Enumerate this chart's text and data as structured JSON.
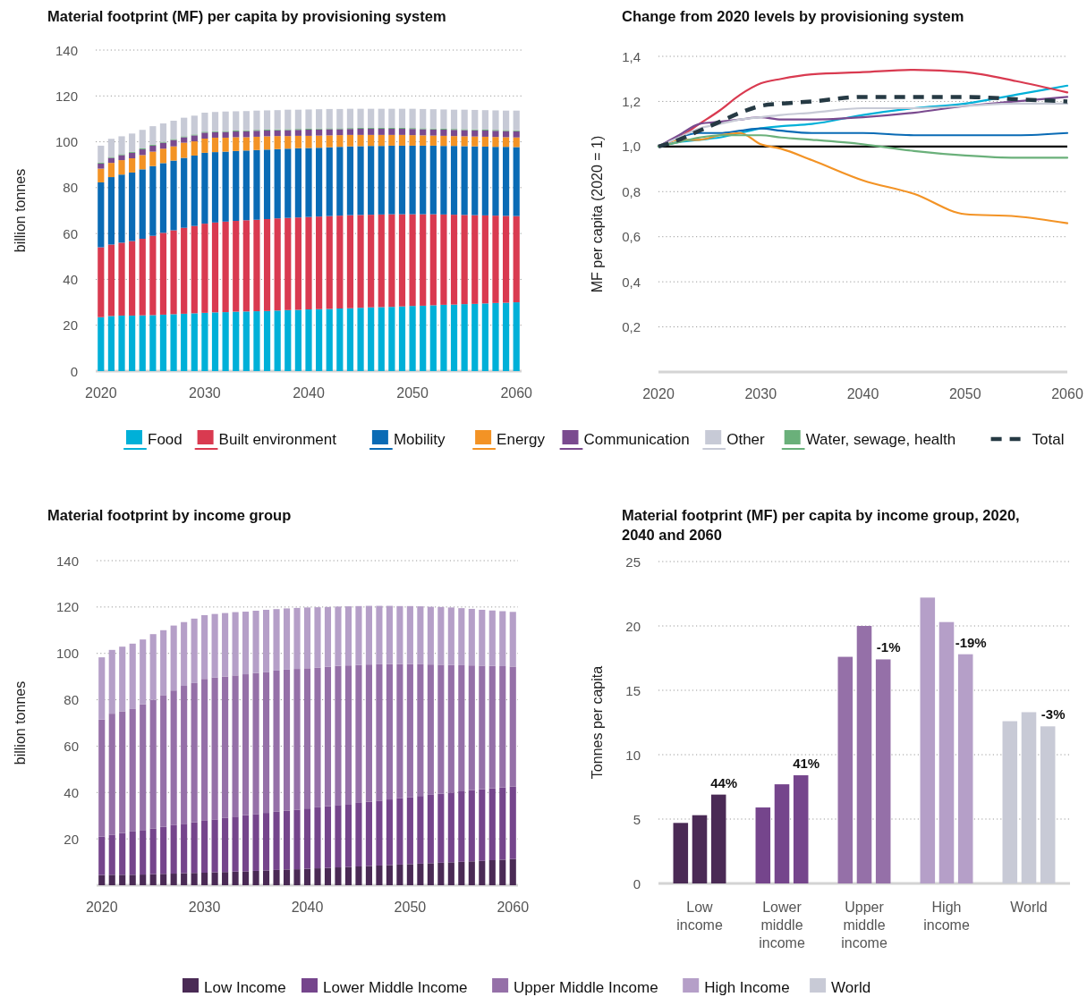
{
  "chart_data": [
    {
      "type": "bar",
      "title": "Material footprint (MF) per capita by provisioning system",
      "ylabel": "billion tonnes",
      "stacked": true,
      "grid": "y",
      "legend": "bottom",
      "x": [
        2020,
        2021,
        2022,
        2023,
        2024,
        2025,
        2026,
        2027,
        2028,
        2029,
        2030,
        2031,
        2032,
        2033,
        2034,
        2035,
        2036,
        2037,
        2038,
        2039,
        2040,
        2041,
        2042,
        2043,
        2044,
        2045,
        2046,
        2047,
        2048,
        2049,
        2050,
        2051,
        2052,
        2053,
        2054,
        2055,
        2056,
        2057,
        2058,
        2059,
        2060
      ],
      "xlim": [
        2019.5,
        2060.5
      ],
      "xticks": [
        2020,
        2030,
        2040,
        2050,
        2060
      ],
      "ylim": [
        0,
        140
      ],
      "yticks": [
        0,
        20,
        40,
        60,
        80,
        100,
        120,
        140
      ],
      "series": [
        {
          "name": "Food",
          "color": "#00b0d8",
          "values": [
            23.5,
            24,
            24.2,
            24.2,
            24.3,
            24.4,
            24.6,
            24.8,
            25,
            25.2,
            25.4,
            25.6,
            25.7,
            25.9,
            26,
            26.1,
            26.2,
            26.4,
            26.6,
            26.7,
            26.9,
            27,
            27.1,
            27.3,
            27.4,
            27.6,
            27.8,
            27.9,
            28,
            28.2,
            28.4,
            28.5,
            28.7,
            28.9,
            29,
            29.2,
            29.3,
            29.5,
            29.7,
            29.8,
            30
          ]
        },
        {
          "name": "Built environment",
          "color": "#d93a50",
          "values": [
            30.5,
            31.2,
            31.8,
            32.5,
            33.4,
            34.6,
            35.7,
            36.6,
            37.5,
            38.1,
            38.9,
            39.2,
            39.5,
            39.6,
            39.8,
            39.9,
            40.1,
            40.2,
            40.2,
            40.3,
            40.3,
            40.4,
            40.5,
            40.5,
            40.6,
            40.5,
            40.4,
            40.4,
            40.4,
            40.2,
            40,
            39.9,
            39.7,
            39.4,
            39.2,
            38.9,
            38.7,
            38.4,
            38.1,
            37.9,
            37.6
          ]
        },
        {
          "name": "Mobility",
          "color": "#0a6bb5",
          "values": [
            28.3,
            29.4,
            29.7,
            29.9,
            30.3,
            30.4,
            30.4,
            30.4,
            30.5,
            30.7,
            30.9,
            30.7,
            30.5,
            30.5,
            30.4,
            30.4,
            30.3,
            30.2,
            30.2,
            30.2,
            30.1,
            30,
            30,
            30,
            30,
            30,
            30,
            29.9,
            29.9,
            29.9,
            29.9,
            29.9,
            29.9,
            29.9,
            30,
            30,
            30,
            30,
            30,
            30.1,
            30.1
          ]
        },
        {
          "name": "Energy",
          "color": "#f39325",
          "values": [
            6,
            6.2,
            6.3,
            6.2,
            6.2,
            6.3,
            6.3,
            6.2,
            6.6,
            6.2,
            6.2,
            6.3,
            6.1,
            6,
            5.8,
            5.8,
            5.8,
            5.7,
            5.5,
            5.4,
            5.3,
            5.3,
            5.2,
            5.1,
            5,
            4.9,
            4.8,
            4.8,
            4.7,
            4.7,
            4.6,
            4.5,
            4.4,
            4.4,
            4.3,
            4.3,
            4.3,
            4.3,
            4.3,
            4.2,
            4.2
          ]
        },
        {
          "name": "Communication",
          "color": "#7a4a8f",
          "values": [
            2.2,
            2.2,
            2.2,
            2.4,
            2.5,
            2.6,
            2.6,
            2.8,
            2.4,
            2.6,
            2.6,
            2.4,
            2.5,
            2.5,
            2.6,
            2.6,
            2.5,
            2.5,
            2.6,
            2.6,
            2.7,
            2.7,
            2.7,
            2.6,
            2.6,
            2.7,
            2.7,
            2.7,
            2.7,
            2.7,
            2.7,
            2.7,
            2.7,
            2.7,
            2.7,
            2.7,
            2.7,
            2.7,
            2.7,
            2.7,
            2.7
          ]
        },
        {
          "name": "Water, sewage, health",
          "color": "#6ab07a",
          "values": [
            0.4,
            0.4,
            0.4,
            0.4,
            0.4,
            0.4,
            0.4,
            0.4,
            0.4,
            0.4,
            0.4,
            0.4,
            0.4,
            0.4,
            0.4,
            0.4,
            0.4,
            0.4,
            0.4,
            0.4,
            0.4,
            0.4,
            0.4,
            0.4,
            0.4,
            0.4,
            0.4,
            0.4,
            0.4,
            0.4,
            0.4,
            0.4,
            0.4,
            0.4,
            0.4,
            0.4,
            0.4,
            0.4,
            0.4,
            0.4,
            0.4
          ]
        },
        {
          "name": "Other",
          "color": "#c7cad6",
          "values": [
            7.4,
            7.9,
            7.8,
            8,
            8.1,
            8.1,
            8,
            8,
            8.1,
            8.2,
            8.3,
            8.4,
            8.5,
            8.4,
            8.4,
            8.4,
            8.4,
            8.4,
            8.5,
            8.4,
            8.4,
            8.4,
            8.4,
            8.4,
            8.4,
            8.3,
            8.3,
            8.3,
            8.3,
            8.3,
            8.4,
            8.4,
            8.4,
            8.4,
            8.4,
            8.5,
            8.5,
            8.5,
            8.5,
            8.5,
            8.6
          ]
        }
      ]
    },
    {
      "type": "line",
      "title": "Change from 2020 levels by provisioning system",
      "ylabel": "MF per capita (2020 = 1)",
      "grid": "y",
      "legend": "bottom",
      "x": [
        2020,
        2022,
        2024,
        2026,
        2028,
        2030,
        2032,
        2035,
        2040,
        2045,
        2050,
        2055,
        2060
      ],
      "xlim": [
        2020,
        2060
      ],
      "xticks": [
        2020,
        2030,
        2040,
        2050,
        2060
      ],
      "ylim": [
        0,
        1.4
      ],
      "yticks": [
        {
          "value": 0.2,
          "label": "0,2"
        },
        {
          "value": 0.4,
          "label": "0,4"
        },
        {
          "value": 0.6,
          "label": "0,6"
        },
        {
          "value": 0.8,
          "label": "0,8"
        },
        {
          "value": 1,
          "label": "1,0"
        },
        {
          "value": 1.2,
          "label": "1,2"
        },
        {
          "value": 1.4,
          "label": "1,4"
        }
      ],
      "ref_lines": [
        {
          "axis": "y",
          "value": 1,
          "color": "#000000"
        }
      ],
      "series": [
        {
          "name": "Food",
          "color": "#00b0d8",
          "values": [
            1,
            1.02,
            1.03,
            1.04,
            1.06,
            1.08,
            1.09,
            1.1,
            1.14,
            1.17,
            1.19,
            1.23,
            1.27
          ]
        },
        {
          "name": "Built environment",
          "color": "#d93a50",
          "values": [
            1,
            1.04,
            1.1,
            1.16,
            1.23,
            1.28,
            1.3,
            1.32,
            1.33,
            1.34,
            1.33,
            1.29,
            1.24
          ]
        },
        {
          "name": "Mobility",
          "color": "#0a6bb5",
          "values": [
            1,
            1.04,
            1.06,
            1.06,
            1.07,
            1.08,
            1.07,
            1.06,
            1.06,
            1.05,
            1.05,
            1.05,
            1.06
          ]
        },
        {
          "name": "Energy",
          "color": "#f39325",
          "values": [
            1,
            1.03,
            1.03,
            1.05,
            1.06,
            1.01,
            0.99,
            0.94,
            0.85,
            0.79,
            0.7,
            0.69,
            0.66
          ]
        },
        {
          "name": "Communication",
          "color": "#7a4a8f",
          "values": [
            1,
            1.05,
            1.1,
            1.11,
            1.12,
            1.13,
            1.12,
            1.12,
            1.13,
            1.15,
            1.18,
            1.2,
            1.22
          ]
        },
        {
          "name": "Other",
          "color": "#c7cad6",
          "values": [
            1,
            1.04,
            1.08,
            1.1,
            1.12,
            1.13,
            1.14,
            1.15,
            1.17,
            1.17,
            1.18,
            1.19,
            1.19
          ]
        },
        {
          "name": "Water, sewage, health",
          "color": "#6ab07a",
          "values": [
            1,
            1.02,
            1.04,
            1.05,
            1.05,
            1.05,
            1.04,
            1.03,
            1.01,
            0.98,
            0.96,
            0.95,
            0.95
          ]
        },
        {
          "name": "Total",
          "color": "#263a44",
          "line_style": "dashed",
          "values": [
            1,
            1.03,
            1.07,
            1.11,
            1.15,
            1.18,
            1.19,
            1.2,
            1.22,
            1.22,
            1.22,
            1.21,
            1.2
          ]
        }
      ]
    },
    {
      "type": "bar",
      "title": "Material footprint by income group",
      "ylabel": "billion tonnes",
      "stacked": true,
      "grid": "y",
      "legend": "bottom",
      "x": [
        2020,
        2021,
        2022,
        2023,
        2024,
        2025,
        2026,
        2027,
        2028,
        2029,
        2030,
        2031,
        2032,
        2033,
        2034,
        2035,
        2036,
        2037,
        2038,
        2039,
        2040,
        2041,
        2042,
        2043,
        2044,
        2045,
        2046,
        2047,
        2048,
        2049,
        2050,
        2051,
        2052,
        2053,
        2054,
        2055,
        2056,
        2057,
        2058,
        2059,
        2060
      ],
      "xlim": [
        2019.5,
        2060.5
      ],
      "xticks": [
        2020,
        2030,
        2040,
        2050,
        2060
      ],
      "ylim": [
        0,
        140
      ],
      "yticks": [
        20,
        40,
        60,
        80,
        100,
        120,
        140
      ],
      "series": [
        {
          "name": "Low Income",
          "color": "#4a2a55",
          "values": [
            4.4,
            4.5,
            4.5,
            4.5,
            4.6,
            4.8,
            4.9,
            5,
            5.2,
            5.3,
            5.4,
            5.6,
            5.7,
            5.9,
            6,
            6.2,
            6.4,
            6.6,
            6.8,
            6.9,
            7.1,
            7.3,
            7.5,
            7.7,
            7.9,
            8.1,
            8.3,
            8.5,
            8.7,
            8.9,
            9.1,
            9.3,
            9.5,
            9.7,
            9.9,
            10.1,
            10.3,
            10.5,
            10.8,
            11,
            11.3
          ]
        },
        {
          "name": "Lower Middle Income",
          "color": "#75458c",
          "values": [
            16.6,
            17.3,
            18,
            18.7,
            19.2,
            19.7,
            20.3,
            20.9,
            21.3,
            21.8,
            22.4,
            22.8,
            23.3,
            23.7,
            24.2,
            24.5,
            24.8,
            25.1,
            25.4,
            25.7,
            26,
            26.3,
            26.6,
            26.9,
            27.1,
            27.4,
            27.7,
            28,
            28.3,
            28.6,
            28.9,
            29.2,
            29.5,
            29.8,
            30.1,
            30.4,
            30.7,
            30.9,
            31,
            31.2,
            31.3
          ]
        },
        {
          "name": "Upper Middle Income",
          "color": "#9570a8",
          "values": [
            50.5,
            52.2,
            52.5,
            52.8,
            54.2,
            55.5,
            56.8,
            58.1,
            59.5,
            60.1,
            61.2,
            61.2,
            61,
            60.9,
            60.8,
            60.8,
            60.8,
            60.9,
            60.8,
            60.7,
            60.5,
            60.2,
            60.1,
            60,
            59.8,
            59.5,
            59.2,
            58.8,
            58.4,
            57.9,
            57.4,
            56.8,
            56.2,
            55.6,
            55,
            54.4,
            53.8,
            53.3,
            52.8,
            52.3,
            51.7
          ]
        },
        {
          "name": "High Income",
          "color": "#b59fc8",
          "values": [
            26.8,
            27.5,
            27.9,
            28.2,
            28,
            28.3,
            28,
            28,
            27.5,
            27.8,
            27.5,
            27.4,
            27.4,
            27.3,
            27,
            26.9,
            26.8,
            26.5,
            26.4,
            26.3,
            26.2,
            26.1,
            25.8,
            25.6,
            25.5,
            25.4,
            25.3,
            25.2,
            25.1,
            25,
            25,
            25,
            24.9,
            24.9,
            24.8,
            24.6,
            24.4,
            24.1,
            23.9,
            23.7,
            23.6
          ]
        }
      ]
    },
    {
      "type": "bar",
      "title": "Material footprint (MF) per capita by income group, 2020, 2040 and 2060",
      "ylabel": "Tonnes per capita",
      "grid": "y",
      "legend": "bottom",
      "categories": [
        "Low income",
        "Lower middle income",
        "Upper middle income",
        "High income",
        "World"
      ],
      "ylim": [
        0,
        25
      ],
      "yticks": [
        0,
        5,
        10,
        15,
        20,
        25
      ],
      "annotations": [
        "44%",
        "41%",
        "-1%",
        "-19%",
        "-3%"
      ],
      "series": [
        {
          "colors": [
            "#4a2a55",
            "#75458c",
            "#9570a8",
            "#b59fc8",
            "#c8cad6"
          ],
          "values": [
            4.7,
            5.9,
            17.6,
            22.2,
            12.6
          ]
        },
        {
          "colors": [
            "#4a2a55",
            "#75458c",
            "#9570a8",
            "#b59fc8",
            "#c8cad6"
          ],
          "values": [
            5.3,
            7.7,
            20,
            20.3,
            13.3
          ]
        },
        {
          "colors": [
            "#4a2a55",
            "#75458c",
            "#9570a8",
            "#b59fc8",
            "#c8cad6"
          ],
          "values": [
            6.9,
            8.4,
            17.4,
            17.8,
            12.2
          ]
        }
      ]
    }
  ]
}
